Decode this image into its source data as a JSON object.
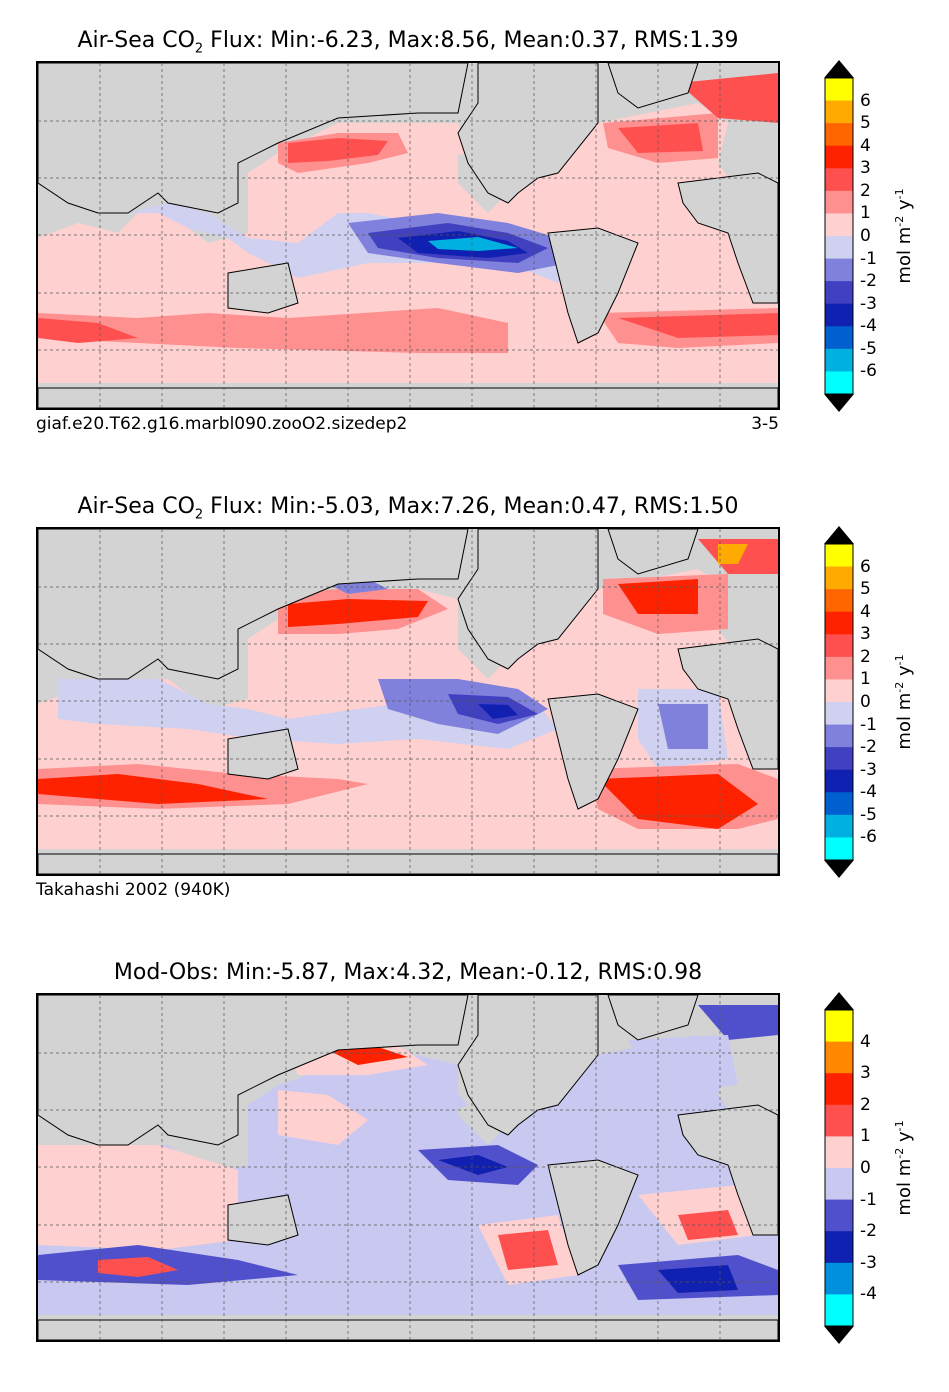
{
  "panels": [
    {
      "title_prefix": "Air-Sea CO",
      "title_sub": "2",
      "title_suffix": " Flux: Min:-6.23, Max:8.56, Mean:0.37, RMS:1.39",
      "caption_left": "giaf.e20.T62.g16.marbl090.zooO2.sizedep2",
      "caption_right": "3-5",
      "colorbar_ticks": [
        "6",
        "5",
        "4",
        "3",
        "2",
        "1",
        "0",
        "-1",
        "-2",
        "-3",
        "-4",
        "-5",
        "-6"
      ],
      "colorbar_colors": [
        "#ffff00",
        "#ffaa00",
        "#ff6600",
        "#ff2200",
        "#ff5050",
        "#ff9090",
        "#ffd0d0",
        "#d0d0f0",
        "#8080dd",
        "#4040c0",
        "#1020b0",
        "#0060d0",
        "#00b0e0",
        "#00ffff"
      ]
    },
    {
      "title_prefix": "Air-Sea CO",
      "title_sub": "2",
      "title_suffix": " Flux: Min:-5.03, Max:7.26, Mean:0.47, RMS:1.50",
      "caption_left": "Takahashi 2002 (940K)",
      "caption_right": "",
      "colorbar_ticks": [
        "6",
        "5",
        "4",
        "3",
        "2",
        "1",
        "0",
        "-1",
        "-2",
        "-3",
        "-4",
        "-5",
        "-6"
      ],
      "colorbar_colors": [
        "#ffff00",
        "#ffaa00",
        "#ff6600",
        "#ff2200",
        "#ff5050",
        "#ff9090",
        "#ffd0d0",
        "#d0d0f0",
        "#8080dd",
        "#4040c0",
        "#1020b0",
        "#0060d0",
        "#00b0e0",
        "#00ffff"
      ]
    },
    {
      "title_prefix": "Mod-Obs: Min:-5.87, Max:4.32, Mean:-0.12, RMS:0.98",
      "title_sub": "",
      "title_suffix": "",
      "caption_left": "",
      "caption_right": "",
      "colorbar_ticks": [
        "4",
        "3",
        "2",
        "1",
        "0",
        "-1",
        "-2",
        "-3",
        "-4"
      ],
      "colorbar_colors": [
        "#ffff00",
        "#ff8800",
        "#ff2200",
        "#ff5050",
        "#ffd0d0",
        "#c8c8f0",
        "#5050cc",
        "#1020b0",
        "#0090dd",
        "#00ffff"
      ]
    }
  ],
  "colorbar_unit_main": "mol m",
  "colorbar_unit_exp1": "-2",
  "colorbar_unit_mid": " y",
  "colorbar_unit_exp2": "-1"
}
